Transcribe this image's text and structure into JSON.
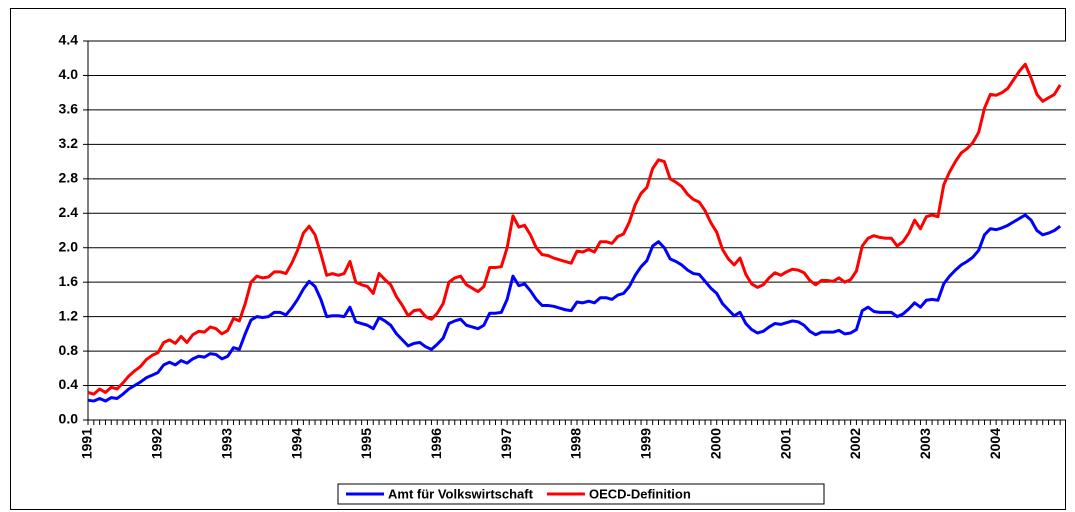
{
  "chart_data": {
    "type": "line",
    "categories": [
      "1991",
      null,
      null,
      null,
      null,
      null,
      null,
      null,
      null,
      null,
      null,
      null,
      "1992",
      null,
      null,
      null,
      null,
      null,
      null,
      null,
      null,
      null,
      null,
      null,
      "1993",
      null,
      null,
      null,
      null,
      null,
      null,
      null,
      null,
      null,
      null,
      null,
      "1994",
      null,
      null,
      null,
      null,
      null,
      null,
      null,
      null,
      null,
      null,
      null,
      "1995",
      null,
      null,
      null,
      null,
      null,
      null,
      null,
      null,
      null,
      null,
      null,
      "1996",
      null,
      null,
      null,
      null,
      null,
      null,
      null,
      null,
      null,
      null,
      null,
      "1997",
      null,
      null,
      null,
      null,
      null,
      null,
      null,
      null,
      null,
      null,
      null,
      "1998",
      null,
      null,
      null,
      null,
      null,
      null,
      null,
      null,
      null,
      null,
      null,
      "1999",
      null,
      null,
      null,
      null,
      null,
      null,
      null,
      null,
      null,
      null,
      null,
      "2000",
      null,
      null,
      null,
      null,
      null,
      null,
      null,
      null,
      null,
      null,
      null,
      "2001",
      null,
      null,
      null,
      null,
      null,
      null,
      null,
      null,
      null,
      null,
      null,
      "2002",
      null,
      null,
      null,
      null,
      null,
      null,
      null,
      null,
      null,
      null,
      null,
      "2003",
      null,
      null,
      null,
      null,
      null,
      null,
      null,
      null,
      null,
      null,
      null,
      "2004",
      null,
      null,
      null,
      null,
      null,
      null,
      null,
      null,
      null,
      null,
      null
    ],
    "series": [
      {
        "name": "Amt für Volkswirtschaft",
        "color": "#0000ff",
        "values": [
          0.23,
          0.22,
          0.25,
          0.22,
          0.26,
          0.25,
          0.3,
          0.36,
          0.4,
          0.44,
          0.49,
          0.52,
          0.55,
          0.64,
          0.67,
          0.64,
          0.69,
          0.66,
          0.71,
          0.74,
          0.73,
          0.77,
          0.76,
          0.71,
          0.74,
          0.84,
          0.82,
          1.0,
          1.16,
          1.2,
          1.19,
          1.2,
          1.25,
          1.25,
          1.22,
          1.3,
          1.4,
          1.52,
          1.61,
          1.55,
          1.4,
          1.2,
          1.21,
          1.21,
          1.2,
          1.31,
          1.14,
          1.12,
          1.1,
          1.06,
          1.19,
          1.15,
          1.1,
          1.0,
          0.93,
          0.86,
          0.89,
          0.9,
          0.85,
          0.82,
          0.88,
          0.95,
          1.12,
          1.15,
          1.17,
          1.1,
          1.08,
          1.06,
          1.1,
          1.24,
          1.24,
          1.25,
          1.4,
          1.67,
          1.56,
          1.58,
          1.5,
          1.4,
          1.33,
          1.33,
          1.32,
          1.3,
          1.28,
          1.27,
          1.37,
          1.36,
          1.38,
          1.36,
          1.42,
          1.42,
          1.4,
          1.45,
          1.47,
          1.55,
          1.68,
          1.78,
          1.85,
          2.02,
          2.07,
          2.0,
          1.87,
          1.84,
          1.8,
          1.74,
          1.7,
          1.69,
          1.61,
          1.53,
          1.47,
          1.35,
          1.28,
          1.21,
          1.25,
          1.12,
          1.05,
          1.01,
          1.03,
          1.08,
          1.12,
          1.11,
          1.13,
          1.15,
          1.14,
          1.1,
          1.03,
          0.99,
          1.02,
          1.02,
          1.02,
          1.04,
          1.0,
          1.01,
          1.05,
          1.27,
          1.31,
          1.26,
          1.25,
          1.25,
          1.25,
          1.2,
          1.23,
          1.29,
          1.36,
          1.31,
          1.39,
          1.4,
          1.39,
          1.58,
          1.67,
          1.74,
          1.8,
          1.84,
          1.89,
          1.97,
          2.15,
          2.22,
          2.21,
          2.23,
          2.26,
          2.3,
          2.34,
          2.38,
          2.32,
          2.2,
          2.15,
          2.17,
          2.2,
          2.25
        ]
      },
      {
        "name": "OECD-Definition",
        "color": "#ff0000",
        "values": [
          0.32,
          0.3,
          0.36,
          0.32,
          0.38,
          0.36,
          0.43,
          0.51,
          0.57,
          0.62,
          0.7,
          0.75,
          0.78,
          0.9,
          0.93,
          0.89,
          0.97,
          0.9,
          0.99,
          1.03,
          1.02,
          1.08,
          1.06,
          1.0,
          1.04,
          1.18,
          1.15,
          1.35,
          1.6,
          1.67,
          1.65,
          1.66,
          1.72,
          1.72,
          1.7,
          1.82,
          1.97,
          2.17,
          2.25,
          2.15,
          1.93,
          1.68,
          1.7,
          1.68,
          1.7,
          1.84,
          1.6,
          1.57,
          1.55,
          1.47,
          1.7,
          1.63,
          1.57,
          1.43,
          1.33,
          1.21,
          1.27,
          1.28,
          1.2,
          1.17,
          1.24,
          1.35,
          1.6,
          1.65,
          1.67,
          1.57,
          1.53,
          1.49,
          1.55,
          1.77,
          1.77,
          1.78,
          2.0,
          2.37,
          2.24,
          2.26,
          2.15,
          2.0,
          1.92,
          1.91,
          1.88,
          1.86,
          1.84,
          1.82,
          1.96,
          1.95,
          1.98,
          1.95,
          2.07,
          2.07,
          2.05,
          2.13,
          2.16,
          2.3,
          2.5,
          2.63,
          2.7,
          2.92,
          3.02,
          3.0,
          2.8,
          2.76,
          2.71,
          2.62,
          2.56,
          2.53,
          2.43,
          2.29,
          2.18,
          1.98,
          1.87,
          1.8,
          1.88,
          1.69,
          1.58,
          1.54,
          1.57,
          1.65,
          1.71,
          1.68,
          1.72,
          1.75,
          1.74,
          1.71,
          1.62,
          1.57,
          1.62,
          1.62,
          1.61,
          1.65,
          1.6,
          1.63,
          1.73,
          2.02,
          2.11,
          2.14,
          2.12,
          2.11,
          2.11,
          2.02,
          2.07,
          2.17,
          2.32,
          2.22,
          2.36,
          2.38,
          2.36,
          2.73,
          2.88,
          3.0,
          3.1,
          3.15,
          3.22,
          3.34,
          3.62,
          3.78,
          3.77,
          3.8,
          3.85,
          3.95,
          4.05,
          4.13,
          3.97,
          3.78,
          3.7,
          3.74,
          3.78,
          3.89
        ]
      }
    ],
    "ylim": [
      0,
      4.4
    ],
    "yticks": [
      {
        "value": 0,
        "label": "0.0"
      },
      0.4,
      0.8,
      1.2,
      1.6,
      {
        "value": 2,
        "label": "2.0"
      },
      2.4,
      2.8,
      3.2,
      3.6,
      {
        "value": 4,
        "label": "4.0"
      },
      4.4
    ],
    "grid": true,
    "legend": "bottom"
  }
}
